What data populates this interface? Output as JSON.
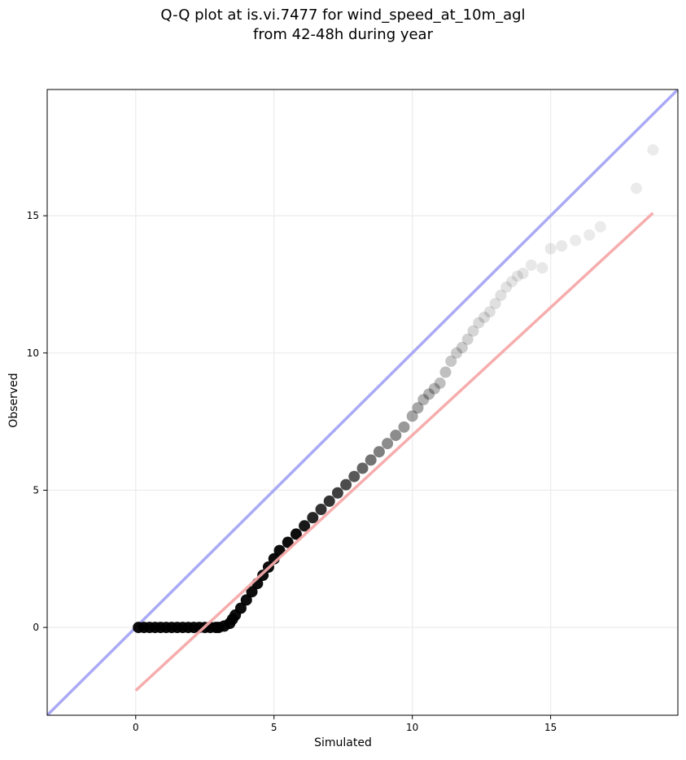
{
  "chart_data": {
    "type": "scatter",
    "title_line1": "Q-Q plot at is.vi.7477 for wind_speed_at_10m_agl",
    "title_line2": "from 42-48h during year",
    "xlabel": "Simulated",
    "ylabel": "Observed",
    "xlim": [
      -3.2,
      19.6
    ],
    "ylim": [
      -3.2,
      19.6
    ],
    "xticks": [
      0,
      5,
      10,
      15
    ],
    "yticks": [
      0,
      5,
      10,
      15
    ],
    "grid": true,
    "identity_line": {
      "color": "#aaaaf5",
      "x": [
        -3.2,
        19.6
      ],
      "y": [
        -3.2,
        19.6
      ]
    },
    "fit_line": {
      "color": "#f5a9a9",
      "x": [
        0.0,
        18.7
      ],
      "y": [
        -2.3,
        15.1
      ]
    },
    "points": {
      "color": "#000000",
      "x": [
        0.1,
        0.3,
        0.5,
        0.7,
        0.9,
        1.1,
        1.3,
        1.5,
        1.7,
        1.9,
        2.1,
        2.3,
        2.5,
        2.7,
        2.9,
        3.0,
        3.2,
        3.4,
        3.5,
        3.6,
        3.8,
        4.0,
        4.2,
        4.4,
        4.6,
        4.8,
        5.0,
        5.2,
        5.5,
        5.8,
        6.1,
        6.4,
        6.7,
        7.0,
        7.3,
        7.6,
        7.9,
        8.2,
        8.5,
        8.8,
        9.1,
        9.4,
        9.7,
        10.0,
        10.2,
        10.4,
        10.6,
        10.8,
        11.0,
        11.2,
        11.4,
        11.6,
        11.8,
        12.0,
        12.2,
        12.4,
        12.6,
        12.8,
        13.0,
        13.2,
        13.4,
        13.6,
        13.8,
        14.0,
        14.3,
        14.7,
        15.0,
        15.4,
        15.9,
        16.4,
        16.8,
        18.1,
        18.7
      ],
      "y": [
        0.0,
        0.0,
        0.0,
        0.0,
        0.0,
        0.0,
        0.0,
        0.0,
        0.0,
        0.0,
        0.0,
        0.0,
        0.0,
        0.0,
        0.0,
        0.0,
        0.05,
        0.15,
        0.3,
        0.45,
        0.7,
        1.0,
        1.3,
        1.6,
        1.9,
        2.2,
        2.5,
        2.8,
        3.1,
        3.4,
        3.7,
        4.0,
        4.3,
        4.6,
        4.9,
        5.2,
        5.5,
        5.8,
        6.1,
        6.4,
        6.7,
        7.0,
        7.3,
        7.7,
        8.0,
        8.3,
        8.5,
        8.7,
        8.9,
        9.3,
        9.7,
        10.0,
        10.2,
        10.5,
        10.8,
        11.1,
        11.3,
        11.5,
        11.8,
        12.1,
        12.4,
        12.6,
        12.8,
        12.9,
        13.2,
        13.1,
        13.8,
        13.9,
        14.1,
        14.3,
        14.6,
        16.0,
        17.4
      ],
      "alpha": [
        0.95,
        0.95,
        0.95,
        0.95,
        0.95,
        0.95,
        0.95,
        0.95,
        0.95,
        0.95,
        0.95,
        0.95,
        0.95,
        0.95,
        0.95,
        0.95,
        0.95,
        0.95,
        0.95,
        0.95,
        0.95,
        0.95,
        0.95,
        0.95,
        0.95,
        0.95,
        0.95,
        0.95,
        0.95,
        0.95,
        0.9,
        0.85,
        0.8,
        0.8,
        0.75,
        0.7,
        0.65,
        0.6,
        0.55,
        0.5,
        0.45,
        0.45,
        0.4,
        0.35,
        0.35,
        0.3,
        0.3,
        0.28,
        0.25,
        0.25,
        0.22,
        0.2,
        0.2,
        0.18,
        0.16,
        0.15,
        0.14,
        0.13,
        0.12,
        0.12,
        0.11,
        0.1,
        0.1,
        0.1,
        0.09,
        0.09,
        0.09,
        0.09,
        0.08,
        0.08,
        0.08,
        0.08,
        0.08
      ]
    }
  }
}
